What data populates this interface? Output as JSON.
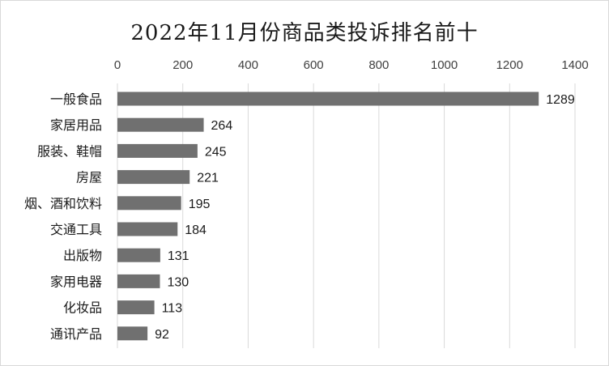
{
  "chart_data": {
    "type": "bar",
    "orientation": "horizontal",
    "title": "2022年11月份商品类投诉排名前十",
    "categories": [
      "一般食品",
      "家居用品",
      "服装、鞋帽",
      "房屋",
      "烟、酒和饮料",
      "交通工具",
      "出版物",
      "家用电器",
      "化妆品",
      "通讯产品"
    ],
    "values": [
      1289,
      264,
      245,
      221,
      195,
      184,
      131,
      130,
      113,
      92
    ],
    "xlim": [
      0,
      1400
    ],
    "xticks": [
      "0",
      "200",
      "400",
      "600",
      "800",
      "1000",
      "1200",
      "1400"
    ],
    "x_axis_position": "top",
    "grid": true,
    "legend": "none",
    "bar_color": "#707070",
    "grid_color": "#d9d9d9"
  }
}
